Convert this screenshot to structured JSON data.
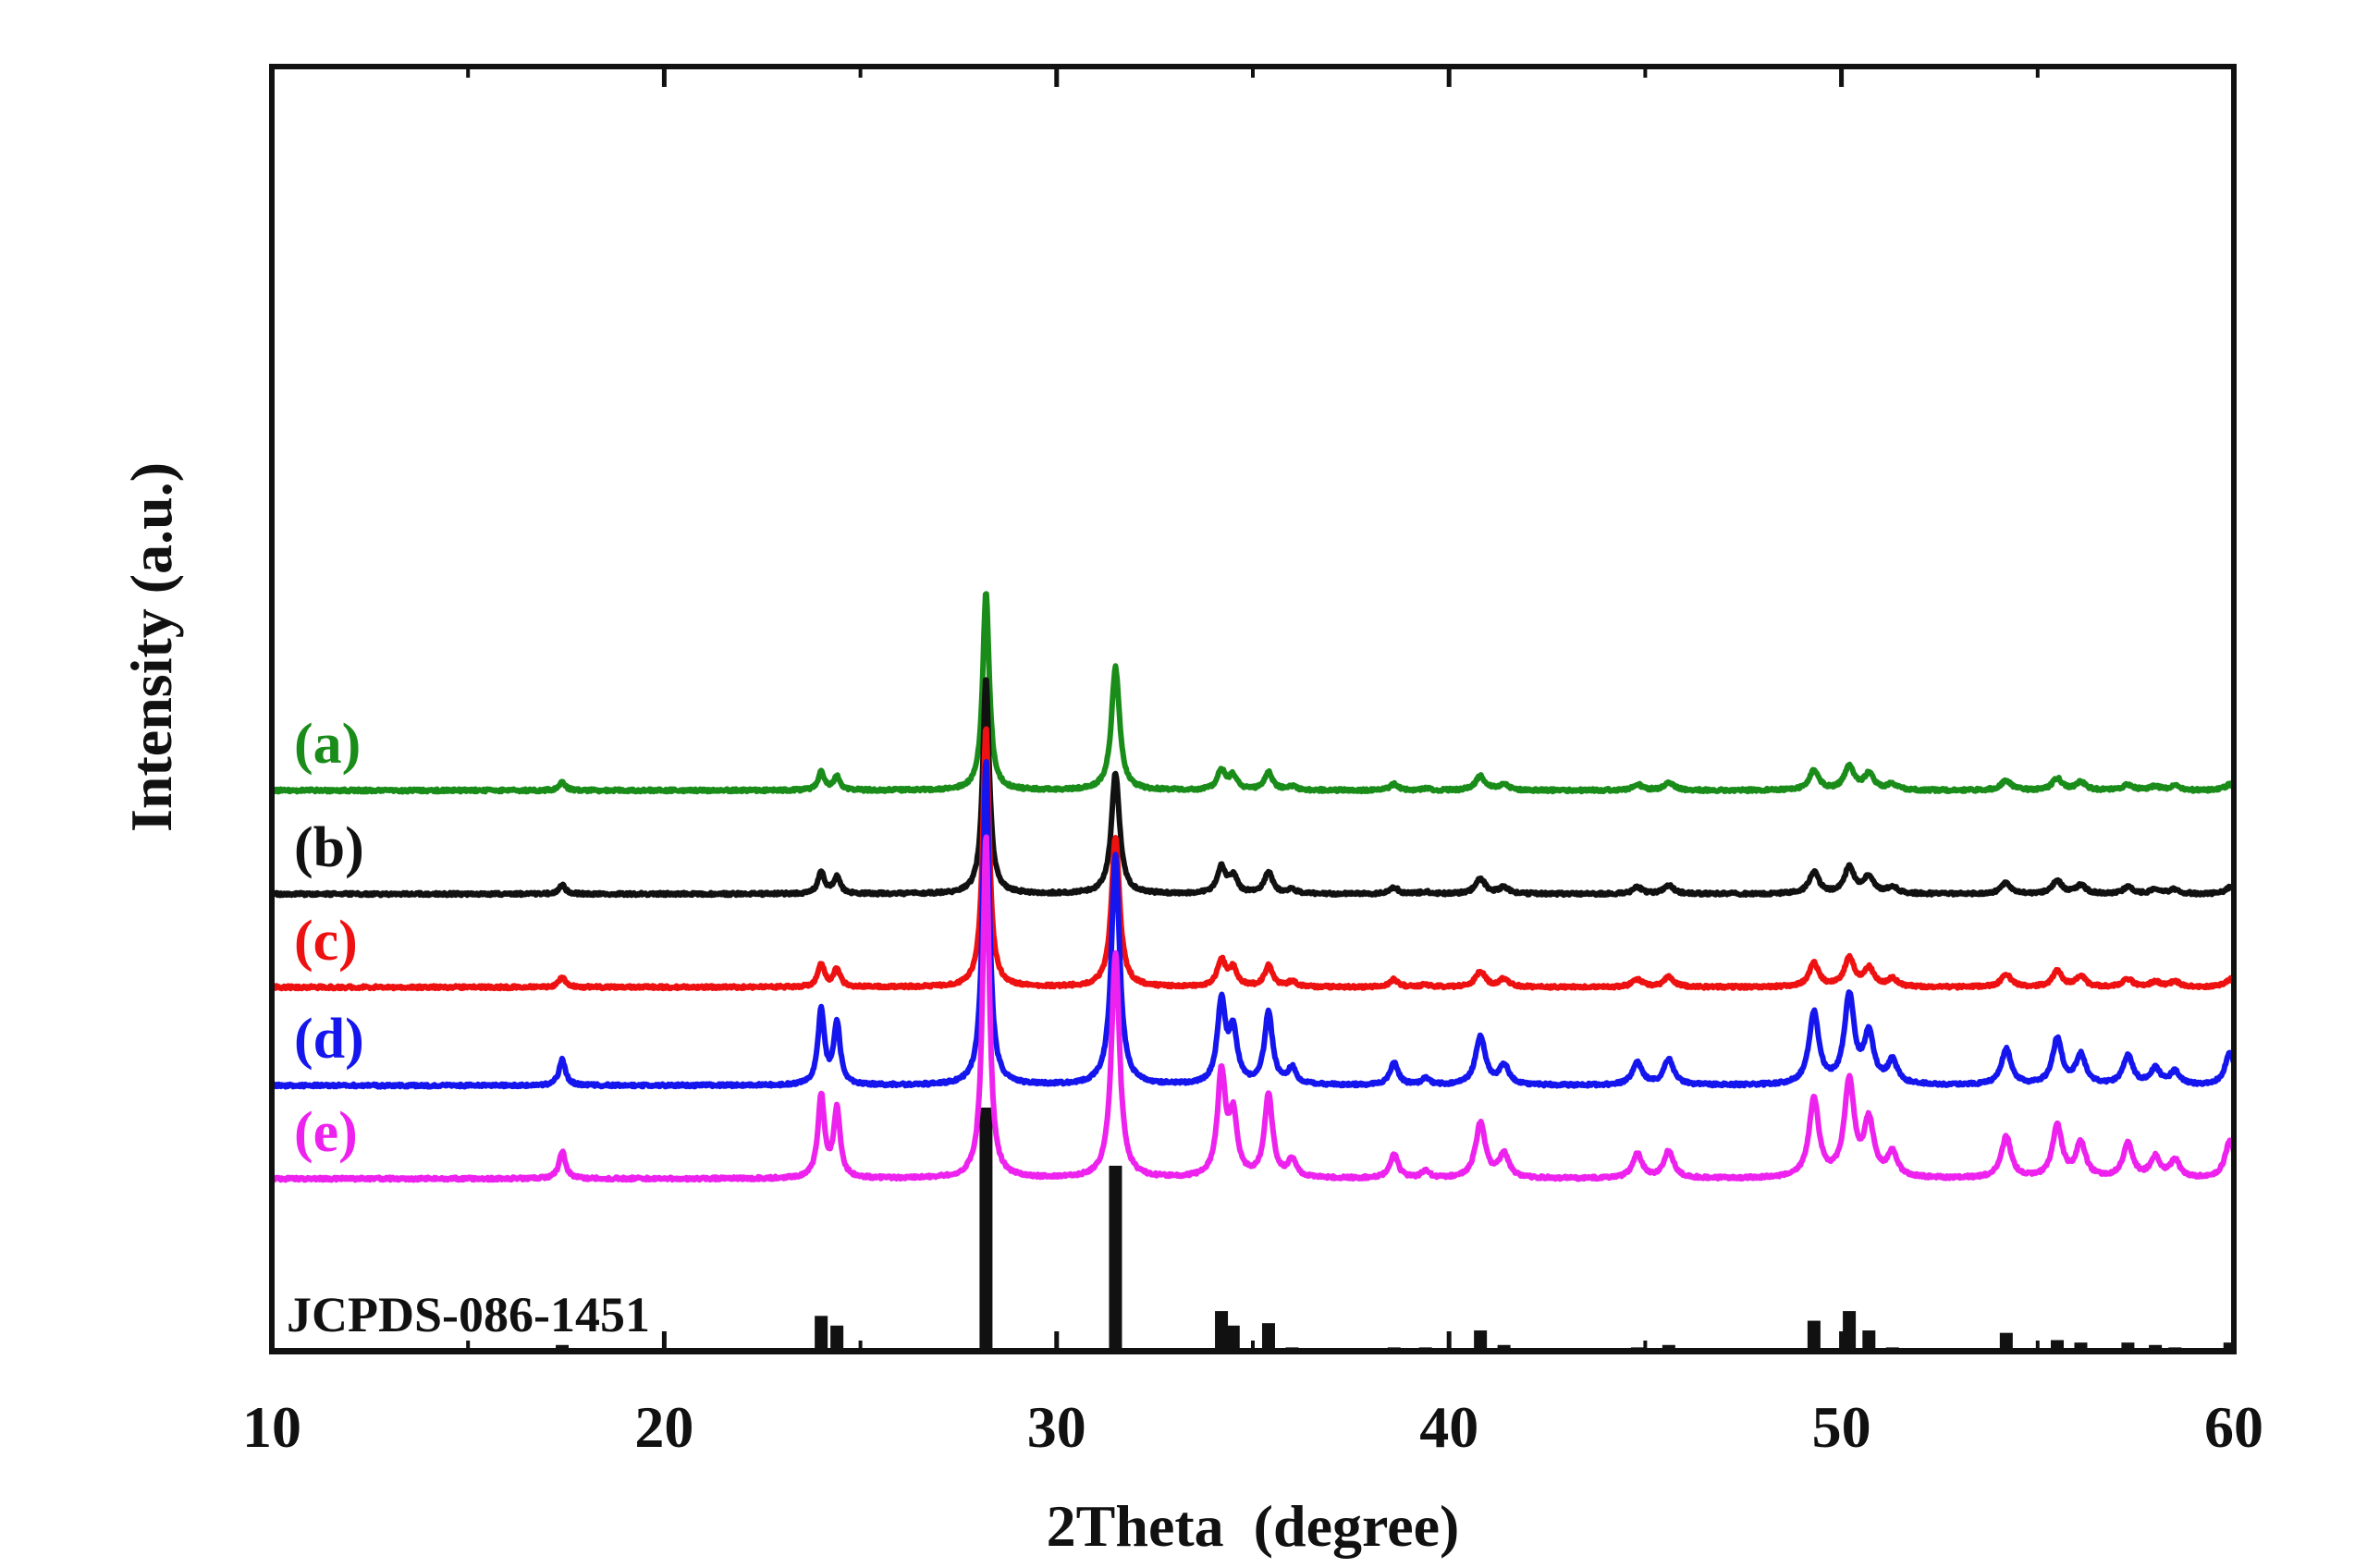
{
  "chart_data": {
    "type": "line",
    "title": "",
    "xlabel": "2Theta  (degree)",
    "ylabel": "Intensity (a.u.)",
    "xlim": [
      10,
      60
    ],
    "xticks": [
      10,
      20,
      30,
      40,
      50,
      60
    ],
    "xtick_labels": [
      "10",
      "20",
      "30",
      "40",
      "50",
      "60"
    ],
    "yticks_shown": false,
    "grid": false,
    "legend": "inline labels on left, stacked traces",
    "peak_positions": [
      17.4,
      24.0,
      24.4,
      28.2,
      31.5,
      34.2,
      34.5,
      35.4,
      36.0,
      38.6,
      39.4,
      40.8,
      41.4,
      44.8,
      45.6,
      49.3,
      50.2,
      50.7,
      51.3,
      54.2,
      55.5,
      56.1,
      57.3,
      58.0,
      58.5,
      59.9
    ],
    "series": [
      {
        "name": "(a)",
        "color": "#1a8c1a",
        "offset": 400,
        "scale": 0.55,
        "relative_intensities": [
          4,
          9,
          7,
          100,
          62,
          10,
          7,
          9,
          2,
          3,
          1,
          7,
          3,
          3,
          4,
          10,
          12,
          8,
          3,
          5,
          6,
          4,
          3,
          2,
          2,
          3
        ]
      },
      {
        "name": "(b)",
        "color": "#111111",
        "offset": 300,
        "scale": 0.6,
        "relative_intensities": [
          4,
          10,
          8,
          100,
          56,
          12,
          8,
          10,
          2,
          3,
          1,
          7,
          3,
          3,
          4,
          10,
          12,
          8,
          3,
          5,
          6,
          4,
          3,
          2,
          2,
          3
        ]
      },
      {
        "name": "(c)",
        "color": "#ee1111",
        "offset": 210,
        "scale": 0.72,
        "relative_intensities": [
          4,
          9,
          7,
          100,
          58,
          10,
          7,
          8,
          2,
          3,
          1,
          6,
          3,
          3,
          4,
          9,
          11,
          7,
          3,
          5,
          6,
          4,
          3,
          2,
          2,
          3
        ]
      },
      {
        "name": "(d)",
        "color": "#1515ee",
        "offset": 115,
        "scale": 0.9,
        "relative_intensities": [
          8,
          23,
          19,
          100,
          71,
          25,
          16,
          22,
          5,
          7,
          2,
          15,
          6,
          7,
          8,
          22,
          27,
          15,
          7,
          11,
          14,
          9,
          9,
          5,
          4,
          10
        ]
      },
      {
        "name": "(e)",
        "color": "#ee22ee",
        "offset": 25,
        "scale": 0.95,
        "relative_intensities": [
          8,
          24,
          20,
          100,
          66,
          30,
          17,
          24,
          5,
          7,
          2,
          16,
          7,
          7,
          8,
          23,
          28,
          16,
          7,
          12,
          15,
          10,
          10,
          6,
          5,
          11
        ]
      }
    ],
    "reference": {
      "name": "JCPDS-086-1451",
      "color": "#111111",
      "relative_intensities": [
        2,
        14,
        10,
        100,
        76,
        16,
        10,
        11,
        1,
        1,
        1,
        8,
        2,
        1,
        2,
        12,
        16,
        8,
        1,
        7,
        4,
        3,
        3,
        2,
        1,
        3
      ]
    }
  }
}
